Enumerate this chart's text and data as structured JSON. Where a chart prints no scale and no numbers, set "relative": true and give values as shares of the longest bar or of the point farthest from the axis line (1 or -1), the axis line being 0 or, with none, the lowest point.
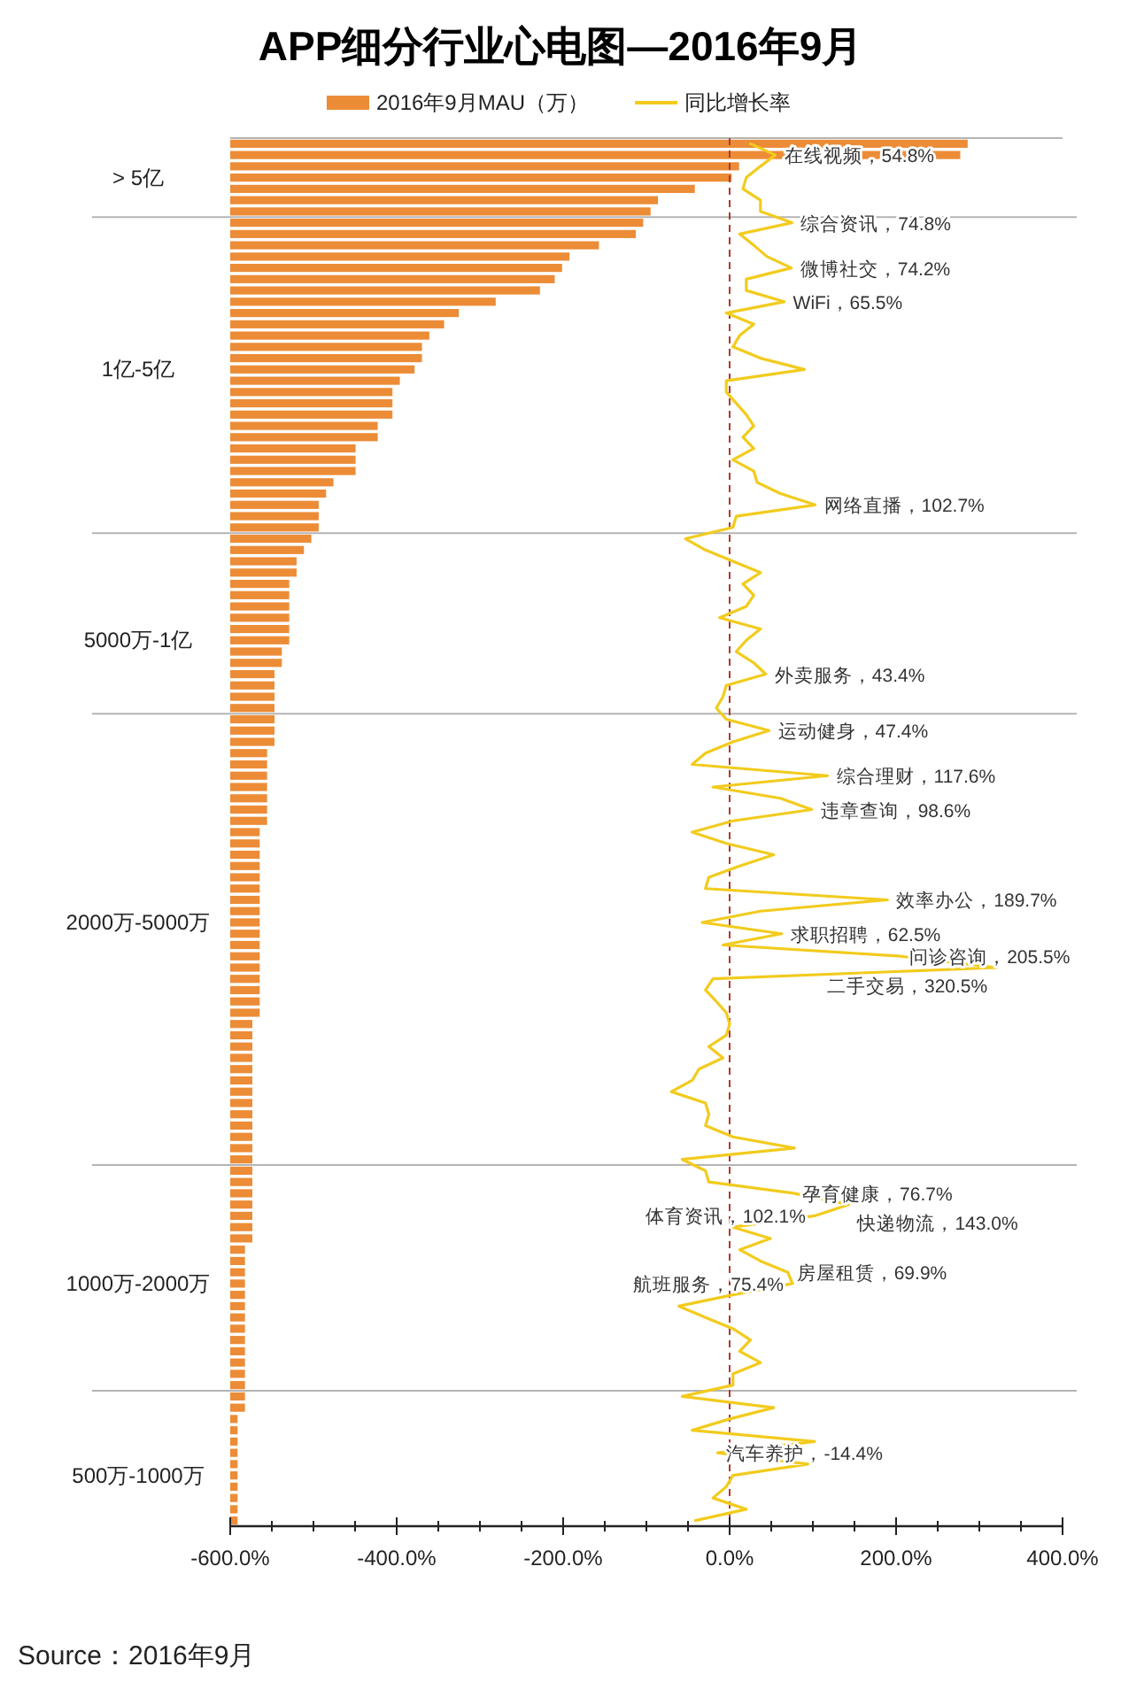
{
  "chart_data": [
    {
      "type": "bar",
      "orientation": "horizontal",
      "relative": true,
      "title": "APP细分行业心电图—2016年9月",
      "legend": "top",
      "categories": [
        null,
        null,
        null,
        "> 5亿",
        null,
        null,
        null,
        null,
        null,
        null,
        null,
        null,
        null,
        null,
        null,
        null,
        null,
        null,
        null,
        null,
        "1亿-5亿",
        null,
        null,
        null,
        null,
        null,
        null,
        null,
        null,
        null,
        null,
        null,
        null,
        null,
        null,
        null,
        null,
        null,
        null,
        null,
        null,
        null,
        null,
        null,
        "5000万-1亿",
        null,
        null,
        null,
        null,
        null,
        null,
        null,
        null,
        null,
        null,
        null,
        null,
        null,
        null,
        null,
        null,
        null,
        null,
        null,
        null,
        null,
        null,
        null,
        null,
        "2000万-5000万",
        null,
        null,
        null,
        null,
        null,
        null,
        null,
        null,
        null,
        null,
        null,
        null,
        null,
        null,
        null,
        null,
        null,
        null,
        null,
        null,
        null,
        null,
        null,
        null,
        null,
        null,
        null,
        null,
        null,
        null,
        null,
        "1000万-2000万",
        null,
        null,
        null,
        null,
        null,
        null,
        null,
        null,
        null,
        null,
        null,
        null,
        null,
        null,
        null,
        null,
        "500万-1000万",
        null,
        null,
        null,
        null
      ],
      "series": [
        {
          "name": "2016年9月MAU（万）",
          "color": "#ec8c37",
          "values": [
            1.0,
            0.99,
            0.69,
            0.68,
            0.63,
            0.58,
            0.57,
            0.56,
            0.55,
            0.5,
            0.46,
            0.45,
            0.44,
            0.42,
            0.36,
            0.31,
            0.29,
            0.27,
            0.26,
            0.26,
            0.25,
            0.23,
            0.22,
            0.22,
            0.22,
            0.2,
            0.2,
            0.17,
            0.17,
            0.17,
            0.14,
            0.13,
            0.12,
            0.12,
            0.12,
            0.11,
            0.1,
            0.09,
            0.09,
            0.08,
            0.08,
            0.08,
            0.08,
            0.08,
            0.08,
            0.07,
            0.07,
            0.06,
            0.06,
            0.06,
            0.06,
            0.06,
            0.06,
            0.06,
            0.05,
            0.05,
            0.05,
            0.05,
            0.05,
            0.05,
            0.05,
            0.04,
            0.04,
            0.04,
            0.04,
            0.04,
            0.04,
            0.04,
            0.04,
            0.04,
            0.04,
            0.04,
            0.04,
            0.04,
            0.04,
            0.04,
            0.04,
            0.04,
            0.03,
            0.03,
            0.03,
            0.03,
            0.03,
            0.03,
            0.03,
            0.03,
            0.03,
            0.03,
            0.03,
            0.03,
            0.03,
            0.03,
            0.03,
            0.03,
            0.03,
            0.03,
            0.03,
            0.03,
            0.02,
            0.02,
            0.02,
            0.02,
            0.02,
            0.02,
            0.02,
            0.02,
            0.02,
            0.02,
            0.02,
            0.02,
            0.02,
            0.02,
            0.02,
            0.01,
            0.01,
            0.01,
            0.01,
            0.01,
            0.01,
            0.01,
            0.01,
            0.01,
            0.01
          ]
        }
      ]
    },
    {
      "type": "line",
      "orientation": "horizontal",
      "legend": "top",
      "annotations": [
        "Source：2016年9月"
      ],
      "xlim": [
        -600,
        400
      ],
      "xticks": [
        {
          "value": -600,
          "label": "-600.0%"
        },
        {
          "value": -550,
          "label": null
        },
        {
          "value": -500,
          "label": null
        },
        {
          "value": -450,
          "label": null
        },
        {
          "value": -400,
          "label": "-400.0%"
        },
        {
          "value": -350,
          "label": null
        },
        {
          "value": -300,
          "label": null
        },
        {
          "value": -250,
          "label": null
        },
        {
          "value": -200,
          "label": "-200.0%"
        },
        {
          "value": -150,
          "label": null
        },
        {
          "value": -100,
          "label": null
        },
        {
          "value": -50,
          "label": null
        },
        {
          "value": 0,
          "label": "0.0%"
        },
        {
          "value": 50,
          "label": null
        },
        {
          "value": 100,
          "label": null
        },
        {
          "value": 150,
          "label": null
        },
        {
          "value": 200,
          "label": "200.0%"
        },
        {
          "value": 250,
          "label": null
        },
        {
          "value": 300,
          "label": null
        },
        {
          "value": 350,
          "label": null
        },
        {
          "value": 400,
          "label": "400.0%"
        }
      ],
      "ref_lines": [
        {
          "axis": "x",
          "value": 0,
          "color": "#b0392e",
          "line_style": "dashed"
        }
      ],
      "categories": [
        null,
        null,
        null,
        null,
        null,
        null,
        null,
        null,
        null,
        null,
        null,
        null,
        null,
        null,
        null,
        null,
        null,
        null,
        null,
        null,
        null,
        null,
        null,
        null,
        null,
        null,
        null,
        null,
        null,
        null,
        null,
        null,
        null,
        null,
        null,
        null,
        null,
        null,
        null,
        null,
        null,
        null,
        null,
        null,
        null,
        null,
        null,
        null,
        null,
        null,
        null,
        null,
        null,
        null,
        null,
        null,
        null,
        null,
        null,
        null,
        null,
        null,
        null,
        null,
        null,
        null,
        null,
        null,
        null,
        null,
        null,
        null,
        null,
        null,
        null,
        null,
        null,
        null,
        null,
        null,
        null,
        null,
        null,
        null,
        null,
        null,
        null,
        null,
        null,
        null,
        null,
        null,
        null,
        null,
        null,
        null,
        null,
        null,
        null,
        null,
        null,
        null,
        null,
        null,
        null,
        null,
        null,
        null,
        null,
        null,
        null,
        null,
        null,
        null,
        null,
        null,
        null,
        null,
        null,
        null,
        null,
        null,
        null
      ],
      "series": [
        {
          "name": "同比增长率",
          "color": "#f2cb1d",
          "values": [
            25,
            54.8,
            37,
            20,
            16,
            37,
            37,
            74.8,
            12,
            29,
            45,
            74.2,
            20,
            20,
            65.5,
            -4,
            29,
            12,
            4,
            37,
            90,
            -4,
            -4,
            8,
            20,
            29,
            16,
            29,
            4,
            29,
            33,
            61,
            102.7,
            8,
            4,
            -53,
            -29,
            4,
            37,
            16,
            29,
            20,
            -12,
            37,
            20,
            8,
            29,
            43.4,
            -4,
            -8,
            -16,
            -4,
            47.4,
            4,
            -29,
            -45,
            117.6,
            -20,
            61,
            98.6,
            4,
            -45,
            -4,
            53,
            12,
            -25,
            -29,
            189.7,
            37,
            -33,
            62.5,
            -8,
            205.5,
            320.5,
            -20,
            -29,
            -16,
            -4,
            0,
            -4,
            -25,
            -8,
            -37,
            -45,
            -70,
            -29,
            -25,
            -29,
            4,
            78,
            -57,
            -29,
            -25,
            76.7,
            143.0,
            102.1,
            4,
            49,
            12,
            37,
            69.9,
            75.4,
            4,
            -61,
            -29,
            4,
            25,
            12,
            37,
            4,
            4,
            -57,
            53,
            0,
            -45,
            102,
            -14.4,
            94,
            4,
            -4,
            -20,
            20,
            -41
          ],
          "value_labels": [
            null,
            "在线视频，54.8%",
            null,
            null,
            null,
            null,
            null,
            "综合资讯，74.8%",
            null,
            null,
            null,
            "微博社交，74.2%",
            null,
            null,
            "WiFi，65.5%",
            null,
            null,
            null,
            null,
            null,
            null,
            null,
            null,
            null,
            null,
            null,
            null,
            null,
            null,
            null,
            null,
            null,
            "网络直播，102.7%",
            null,
            null,
            null,
            null,
            null,
            null,
            null,
            null,
            null,
            null,
            null,
            null,
            null,
            null,
            "外卖服务，43.4%",
            null,
            null,
            null,
            null,
            "运动健身，47.4%",
            null,
            null,
            null,
            "综合理财，117.6%",
            null,
            null,
            "违章查询，98.6%",
            null,
            null,
            null,
            null,
            null,
            null,
            null,
            "效率办公，189.7%",
            null,
            null,
            "求职招聘，62.5%",
            null,
            "问诊咨询，205.5%",
            "二手交易，320.5%",
            null,
            null,
            null,
            null,
            null,
            null,
            null,
            null,
            null,
            null,
            null,
            null,
            null,
            null,
            null,
            null,
            null,
            null,
            null,
            "孕育健康，76.7%",
            "快递物流，143.0%",
            "体育资讯，102.1%",
            null,
            null,
            null,
            null,
            "房屋租赁，69.9%",
            "航班服务，75.4%",
            null,
            null,
            null,
            null,
            null,
            null,
            null,
            null,
            null,
            null,
            null,
            null,
            null,
            null,
            "汽车养护，-14.4%",
            null,
            null,
            null,
            null,
            null,
            null
          ]
        }
      ]
    }
  ]
}
